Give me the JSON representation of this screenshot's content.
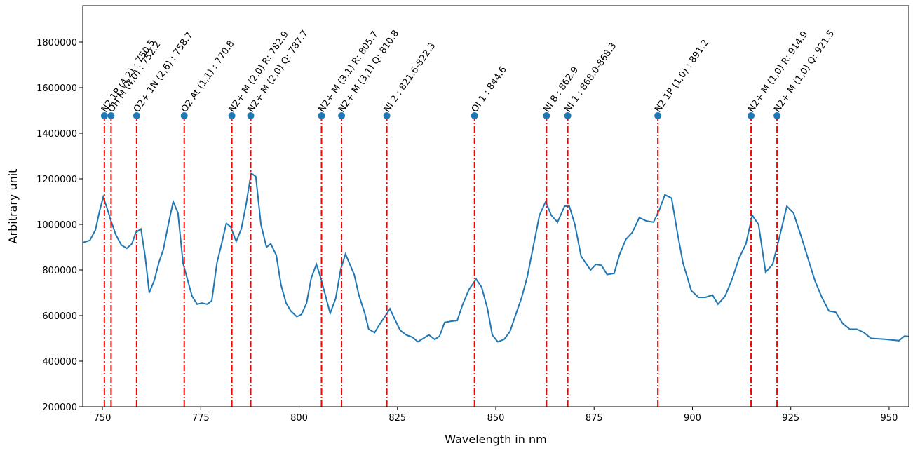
{
  "chart_data": {
    "type": "line",
    "xlabel": "Wavelength in nm",
    "ylabel": "Arbitrary unit",
    "color": "#1f77b4",
    "annotation_color": "#ff0000",
    "xlim": [
      745,
      955
    ],
    "ylim": [
      200000,
      1960000
    ],
    "xticks": [
      750,
      775,
      800,
      825,
      850,
      875,
      900,
      925,
      950
    ],
    "yticks": [
      200000,
      400000,
      600000,
      800000,
      1000000,
      1200000,
      1400000,
      1600000,
      1800000
    ],
    "x": [
      745,
      746.8,
      748.2,
      749.3,
      750.2,
      751.1,
      752.1,
      753.4,
      754.8,
      756.2,
      757.5,
      758.5,
      759.8,
      760.9,
      761.9,
      763.2,
      764.4,
      765.5,
      766.7,
      768.0,
      769.2,
      770.5,
      771.6,
      772.8,
      774.1,
      775.3,
      776.6,
      777.8,
      779.1,
      780.3,
      781.5,
      782.6,
      784.0,
      785.3,
      786.5,
      787.8,
      789.0,
      790.3,
      791.7,
      792.8,
      794.2,
      795.4,
      796.7,
      797.9,
      799.4,
      800.6,
      801.9,
      803.1,
      804.4,
      805.6,
      806.9,
      807.9,
      809.3,
      810.6,
      811.8,
      814.0,
      815.2,
      816.7,
      817.7,
      819.2,
      820.4,
      821.6,
      823.1,
      824.3,
      825.7,
      827.2,
      828.8,
      830.2,
      831.6,
      833.0,
      834.5,
      835.7,
      837.0,
      838.6,
      840.2,
      841.6,
      843.2,
      845.0,
      846.4,
      847.9,
      849.1,
      850.5,
      852.1,
      853.6,
      855.0,
      856.6,
      858.0,
      859.5,
      861.1,
      862.7,
      864.1,
      865.7,
      867.5,
      868.7,
      870.1,
      871.7,
      874.1,
      875.5,
      876.9,
      878.3,
      880.1,
      881.5,
      883.1,
      884.7,
      886.5,
      888.3,
      890.1,
      891.5,
      893.0,
      894.7,
      896.2,
      897.6,
      899.7,
      901.5,
      903.3,
      905.1,
      906.5,
      908.3,
      910.1,
      911.8,
      913.6,
      915.2,
      916.8,
      918.6,
      920.4,
      922.2,
      924.0,
      925.7,
      927.5,
      929.3,
      931.1,
      932.9,
      934.7,
      936.4,
      938.2,
      940.0,
      941.8,
      943.6,
      945.4,
      948.9,
      952.5,
      953.9,
      955.0
    ],
    "y": [
      920000,
      930000,
      975000,
      1060000,
      1120000,
      1075000,
      1020000,
      955000,
      910000,
      895000,
      915000,
      965000,
      980000,
      855000,
      700000,
      755000,
      835000,
      890000,
      995000,
      1100000,
      1050000,
      830000,
      760000,
      685000,
      650000,
      655000,
      650000,
      665000,
      830000,
      915000,
      1005000,
      990000,
      925000,
      980000,
      1085000,
      1225000,
      1210000,
      1000000,
      900000,
      915000,
      865000,
      735000,
      655000,
      620000,
      595000,
      605000,
      655000,
      765000,
      825000,
      760000,
      675000,
      610000,
      675000,
      805000,
      870000,
      780000,
      690000,
      610000,
      540000,
      525000,
      560000,
      590000,
      630000,
      585000,
      535000,
      515000,
      505000,
      485000,
      500000,
      515000,
      495000,
      510000,
      570000,
      575000,
      578000,
      650000,
      715000,
      760000,
      725000,
      630000,
      515000,
      485000,
      495000,
      530000,
      600000,
      680000,
      770000,
      900000,
      1040000,
      1100000,
      1040000,
      1010000,
      1080000,
      1080000,
      1000000,
      860000,
      800000,
      825000,
      820000,
      780000,
      785000,
      870000,
      935000,
      965000,
      1030000,
      1015000,
      1010000,
      1060000,
      1130000,
      1115000,
      960000,
      830000,
      710000,
      680000,
      680000,
      690000,
      650000,
      685000,
      760000,
      850000,
      915000,
      1040000,
      1000000,
      790000,
      825000,
      950000,
      1080000,
      1050000,
      955000,
      855000,
      755000,
      680000,
      620000,
      615000,
      565000,
      540000,
      540000,
      525000,
      500000,
      496000,
      490000,
      510000,
      508000
    ],
    "annotations": [
      {
        "x": 750.5,
        "y": 1477000,
        "label": "N2 1P (4,2) : 750.5"
      },
      {
        "x": 752.2,
        "y": 1477000,
        "label": "OH M (4,0) : 752.2"
      },
      {
        "x": 758.7,
        "y": 1477000,
        "label": "O2+ 1N (2,6) : 758.7"
      },
      {
        "x": 770.8,
        "y": 1477000,
        "label": "O2 At (1,1) : 770.8"
      },
      {
        "x": 782.9,
        "y": 1477000,
        "label": "N2+ M (2,0) R: 782.9"
      },
      {
        "x": 787.7,
        "y": 1477000,
        "label": "N2+ M (2,0) Q: 787.7"
      },
      {
        "x": 805.7,
        "y": 1477000,
        "label": "N2+ M (3,1) R: 805.7"
      },
      {
        "x": 810.8,
        "y": 1477000,
        "label": "N2+ M (3,1) Q: 810.8"
      },
      {
        "x": 822.3,
        "y": 1477000,
        "label": "NI 2 : 821.6-822.3"
      },
      {
        "x": 844.6,
        "y": 1477000,
        "label": "OI 1 : 844.6"
      },
      {
        "x": 862.9,
        "y": 1477000,
        "label": "NI 8 : 862.9"
      },
      {
        "x": 868.3,
        "y": 1477000,
        "label": "NI 1 : 868.0-868.3"
      },
      {
        "x": 891.2,
        "y": 1477000,
        "label": "N2 1P (1,0) : 891.2"
      },
      {
        "x": 914.9,
        "y": 1477000,
        "label": "N2+ M (1,0) R: 914.9"
      },
      {
        "x": 921.5,
        "y": 1477000,
        "label": "N2+ M (1,0) Q: 921.5"
      }
    ]
  }
}
